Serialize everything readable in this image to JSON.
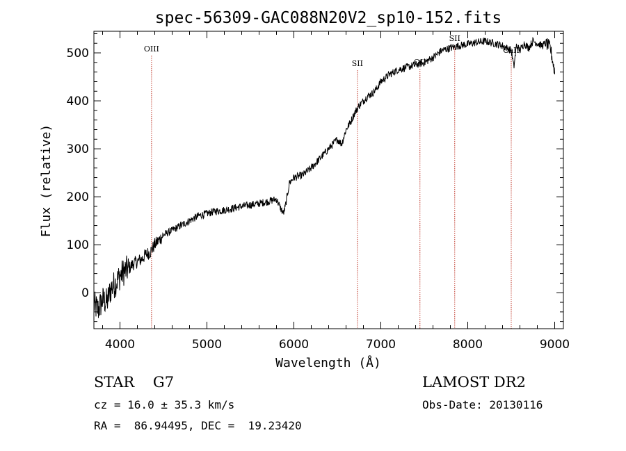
{
  "chart_data": {
    "type": "line",
    "title": "spec-56309-GAC088N20V2_sp10-152.fits",
    "xlabel": "Wavelength (Å)",
    "ylabel": "Flux (relative)",
    "xlim": [
      3700,
      9100
    ],
    "ylim": [
      -75,
      545
    ],
    "grid": false,
    "x_ticks": [
      4000,
      5000,
      6000,
      7000,
      8000,
      9000
    ],
    "y_ticks": [
      0,
      100,
      200,
      300,
      400,
      500
    ],
    "x_tick_labels": [
      "4000",
      "5000",
      "6000",
      "7000",
      "8000",
      "9000"
    ],
    "y_tick_labels": [
      "0",
      "100",
      "200",
      "300",
      "400",
      "500"
    ],
    "line_markers": [
      {
        "label": "OIII",
        "x": 4363
      },
      {
        "label": "SII",
        "x": 6731
      },
      {
        "label": "OII",
        "x": 7450
      },
      {
        "label": "SII",
        "x": 7850
      },
      {
        "label": "CaII",
        "x": 8500
      }
    ],
    "series": [
      {
        "x": [
          3700,
          3750,
          3800,
          3850,
          3900,
          3950,
          4000,
          4050,
          4100,
          4150,
          4200,
          4250,
          4300,
          4350,
          4400,
          4450,
          4500,
          4600,
          4700,
          4800,
          4900,
          5000,
          5100,
          5200,
          5300,
          5400,
          5500,
          5600,
          5700,
          5800,
          5850,
          5880,
          5900,
          5950,
          6000,
          6100,
          6200,
          6300,
          6400,
          6500,
          6550,
          6600,
          6650,
          6700,
          6750,
          6800,
          6850,
          6900,
          6950,
          7000,
          7100,
          7200,
          7300,
          7400,
          7500,
          7600,
          7700,
          7800,
          7900,
          8000,
          8100,
          8200,
          8300,
          8400,
          8450,
          8500,
          8530,
          8560,
          8600,
          8650,
          8700,
          8750,
          8800,
          8850,
          8900,
          8950,
          8980,
          9000
        ],
        "y": [
          -25,
          -35,
          -15,
          -20,
          10,
          20,
          35,
          45,
          50,
          60,
          65,
          70,
          80,
          85,
          100,
          110,
          120,
          130,
          140,
          150,
          160,
          165,
          170,
          172,
          176,
          180,
          183,
          186,
          190,
          195,
          175,
          165,
          178,
          230,
          240,
          245,
          260,
          280,
          300,
          320,
          310,
          340,
          355,
          375,
          390,
          400,
          410,
          415,
          425,
          440,
          455,
          465,
          470,
          475,
          480,
          490,
          505,
          510,
          515,
          518,
          522,
          524,
          520,
          515,
          510,
          505,
          470,
          515,
          505,
          520,
          510,
          525,
          520,
          515,
          520,
          510,
          480,
          460
        ]
      }
    ]
  },
  "info": {
    "class_line": "STAR    G7",
    "cz_line": "cz = 16.0 ± 35.3 km/s",
    "coord_line": "RA =  86.94495, DEC =  19.23420",
    "survey": "LAMOST DR2",
    "obs_date": "Obs-Date: 20130116"
  }
}
